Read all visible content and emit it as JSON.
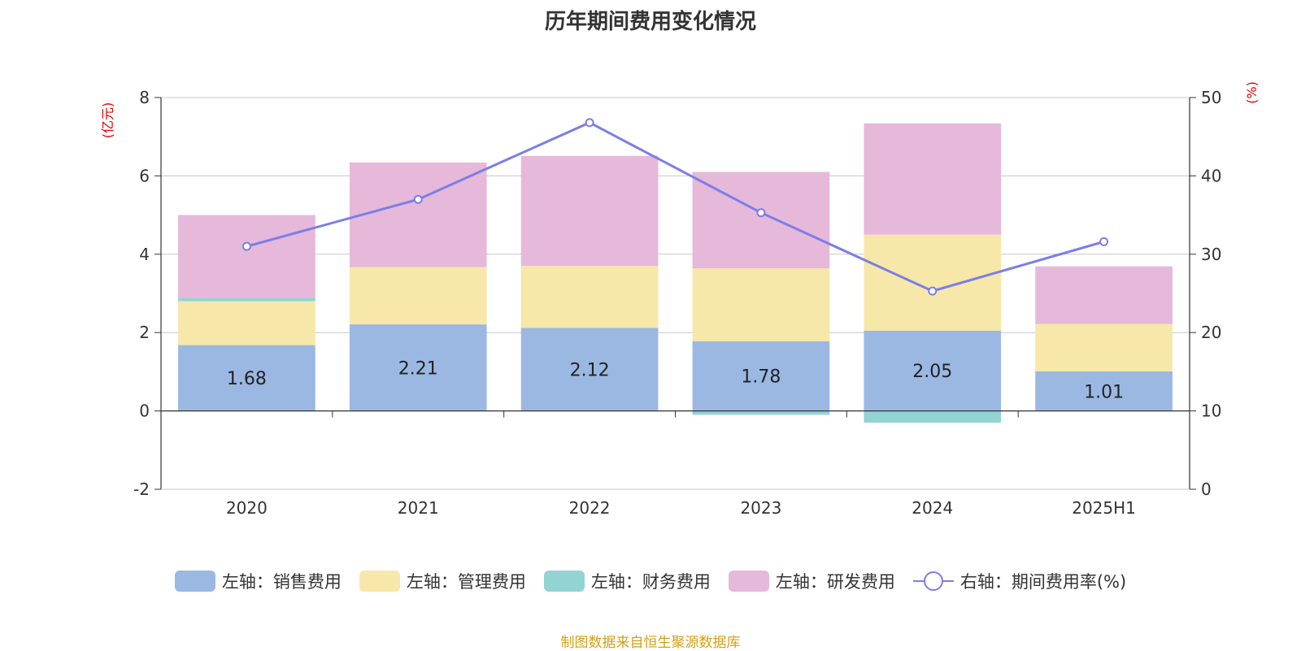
{
  "chart_data": {
    "type": "bar",
    "title": "历年期间费用变化情况",
    "categories": [
      "2020",
      "2021",
      "2022",
      "2023",
      "2024",
      "2025H1"
    ],
    "left_axis": {
      "unit_label": "(亿元)",
      "ylim": [
        -2,
        8
      ],
      "ticks": [
        "-2",
        "0",
        "2",
        "4",
        "6",
        "8"
      ]
    },
    "right_axis": {
      "unit_label": "(%)",
      "ylim": [
        0,
        50
      ],
      "ticks": [
        "0",
        "10",
        "20",
        "30",
        "40",
        "50"
      ]
    },
    "stacked": true,
    "series": [
      {
        "name": "左轴：销售费用",
        "axis": "left",
        "type": "bar",
        "color": "#9bb8e3",
        "values": [
          1.68,
          2.21,
          2.12,
          1.78,
          2.05,
          1.01
        ],
        "show_labels": true
      },
      {
        "name": "左轴：管理费用",
        "axis": "left",
        "type": "bar",
        "color": "#f7e7a9",
        "values": [
          1.12,
          1.46,
          1.58,
          1.86,
          2.45,
          1.21
        ]
      },
      {
        "name": "左轴：财务费用",
        "axis": "left",
        "type": "bar",
        "color": "#93d3d3",
        "values": [
          0.09,
          0.0,
          0.0,
          -0.1,
          -0.3,
          0.0
        ]
      },
      {
        "name": "左轴：研发费用",
        "axis": "left",
        "type": "bar",
        "color": "#e6b8d9",
        "values": [
          2.11,
          2.67,
          2.81,
          2.46,
          2.84,
          1.47
        ]
      },
      {
        "name": "右轴：期间费用率(%)",
        "axis": "right",
        "type": "line",
        "color": "#7b7ee8",
        "values": [
          31.0,
          37.0,
          46.8,
          35.3,
          25.3,
          31.6
        ]
      }
    ],
    "grid": true,
    "legend_position": "bottom"
  },
  "source_note": "制图数据来自恒生聚源数据库"
}
